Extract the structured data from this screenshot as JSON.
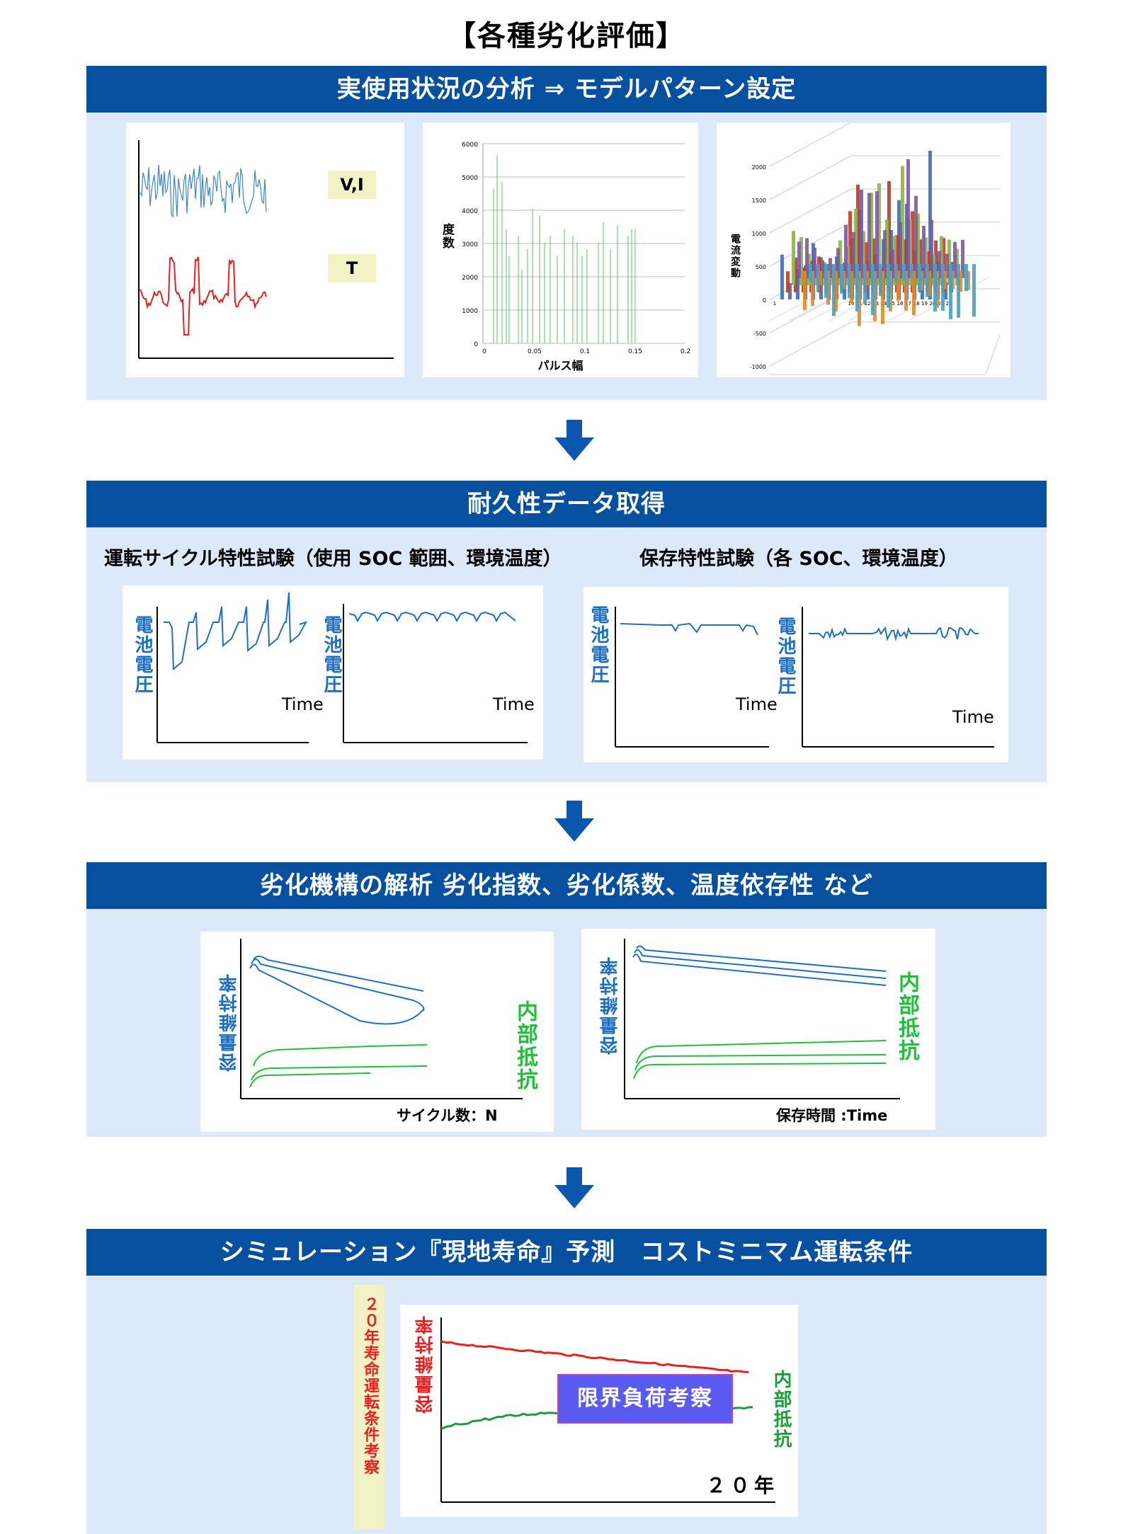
{
  "page_title": "【各種劣化評価】",
  "colors": {
    "header_blue": "#0750a0",
    "panel_bg": "#dbe9fb",
    "blue_line": "#1f6fc0",
    "red_line": "#e82020",
    "green_line": "#1fc03a"
  },
  "section1": {
    "header": "実使用状況の分析 ⇒ モデルパターン設定",
    "vi_label": "V,I",
    "t_label": "T",
    "histogram": {
      "ylabel": "度数",
      "xlabel": "パルス幅",
      "y_ticks": [
        "6000",
        "5000",
        "4000",
        "3000",
        "2000",
        "1000",
        "0"
      ],
      "x_ticks": [
        "0",
        "0.05",
        "0.1",
        "0.15",
        "0.2"
      ]
    },
    "bar3d": {
      "ylabel": "電流変動",
      "z_ticks": [
        "2000",
        "1500",
        "1000",
        "500",
        "0",
        "-500",
        "-1000"
      ],
      "x_ticks": [
        "1",
        "10",
        "11",
        "12",
        "13",
        "14",
        "15",
        "16",
        "17",
        "18",
        "19",
        "20",
        "21",
        "22"
      ]
    }
  },
  "section2": {
    "header": "耐久性データ取得",
    "left_title": "運転サイクル特性試験（使用 SOC 範囲、環境温度）",
    "right_title": "保存特性試験（各 SOC、環境温度）",
    "ylabel": "電池電圧",
    "xlabel": "Time"
  },
  "section3": {
    "header": "劣化機構の解析 劣化指数、劣化係数、温度依存性 など",
    "ylabel_capacity": "容量維持率",
    "ylabel_resistance": "内部抵抗",
    "left_xlabel": "サイクル数：N",
    "right_xlabel": "保存時間 :Time"
  },
  "section4": {
    "header": "シミュレーション『現地寿命』予測　コストミニマム運転条件",
    "side_note": "２０年寿命運転条件考察",
    "ylabel_capacity": "容量維持率",
    "ylabel_resistance": "内部抵抗",
    "center_box": "限界負荷考察",
    "xlabel": "２０年"
  }
}
